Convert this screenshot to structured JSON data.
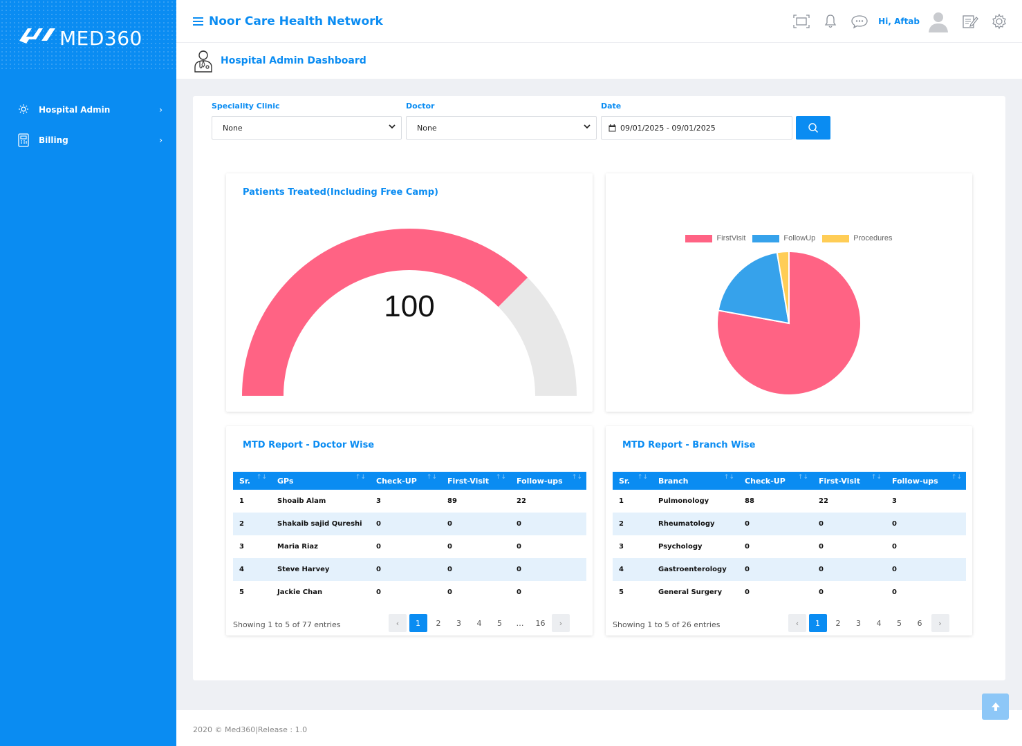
{
  "brand": {
    "logo_text": "MED360"
  },
  "sidebar": {
    "items": [
      {
        "label": "Hospital Admin",
        "icon": "hospital-admin-icon"
      },
      {
        "label": "Billing",
        "icon": "billing-icon"
      }
    ]
  },
  "header": {
    "network_title": "Noor Care Health Network",
    "greeting": "Hi,  Aftab",
    "page_title": "Hospital Admin Dashboard"
  },
  "filters": {
    "speciality_label": "Speciality Clinic",
    "speciality_value": "None",
    "doctor_label": "Doctor",
    "doctor_value": "None",
    "date_label": "Date",
    "date_value": "09/01/2025 - 09/01/2025"
  },
  "gauge_card": {
    "title": "Patients Treated(Including Free Camp)",
    "value": "100"
  },
  "chart_data": [
    {
      "type": "gauge",
      "value": 100,
      "filled_fraction": 0.75,
      "colors": {
        "filled": "#ff6384",
        "remaining": "#e8e8e8"
      }
    },
    {
      "type": "pie",
      "labels": [
        "FirstVisit",
        "FollowUp",
        "Procedures"
      ],
      "values": [
        88,
        22,
        3
      ],
      "colors": [
        "#ff6384",
        "#36a2eb",
        "#ffcd56"
      ],
      "legend_position": "top"
    }
  ],
  "doctor_table": {
    "title": "MTD Report - Doctor Wise",
    "headers": [
      "Sr.",
      "GPs",
      "Check-UP",
      "First-Visit",
      "Follow-ups"
    ],
    "rows": [
      [
        "1",
        "Shoaib Alam",
        "3",
        "89",
        "22"
      ],
      [
        "2",
        "Shakaib sajid Qureshi",
        "0",
        "0",
        "0"
      ],
      [
        "3",
        "Maria Riaz",
        "0",
        "0",
        "0"
      ],
      [
        "4",
        "Steve Harvey",
        "0",
        "0",
        "0"
      ],
      [
        "5",
        "Jackie Chan",
        "0",
        "0",
        "0"
      ]
    ],
    "showing": "Showing 1 to 5 of 77 entries",
    "pages": [
      "1",
      "2",
      "3",
      "4",
      "5",
      "…",
      "16"
    ]
  },
  "branch_table": {
    "title": "MTD Report - Branch Wise",
    "headers": [
      "Sr.",
      "Branch",
      "Check-UP",
      "First-Visit",
      "Follow-ups"
    ],
    "rows": [
      [
        "1",
        "Pulmonology",
        "88",
        "22",
        "3"
      ],
      [
        "2",
        "Rheumatology",
        "0",
        "0",
        "0"
      ],
      [
        "3",
        "Psychology",
        "0",
        "0",
        "0"
      ],
      [
        "4",
        "Gastroenterology",
        "0",
        "0",
        "0"
      ],
      [
        "5",
        "General Surgery",
        "0",
        "0",
        "0"
      ]
    ],
    "showing": "Showing 1 to 5 of 26 entries",
    "pages": [
      "1",
      "2",
      "3",
      "4",
      "5",
      "6"
    ]
  },
  "footer": {
    "text": "2020 © Med360|Release : 1.0"
  },
  "colors": {
    "primary": "#0a8cf2",
    "row_alt": "#e4f1fc"
  }
}
